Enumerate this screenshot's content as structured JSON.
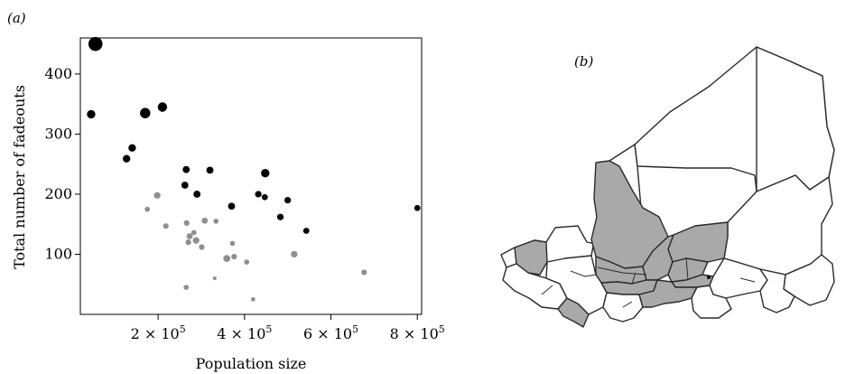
{
  "panel_a_label": "(a)",
  "panel_b_label": "(b)",
  "colors": {
    "point_black": "#000000",
    "point_grey": "#8f8f8f",
    "region_grey": "#a9a9a9",
    "region_white": "#ffffff"
  },
  "chart_data": {
    "type": "scatter",
    "title": "",
    "xlabel": "Population size",
    "ylabel": "Total number of fadeouts",
    "xlim": [
      20000,
      810000
    ],
    "ylim": [
      0,
      460
    ],
    "grid": false,
    "x_ticks": [
      {
        "value": 200000,
        "label_base": "2 × 10",
        "label_exp": "5"
      },
      {
        "value": 400000,
        "label_base": "4 × 10",
        "label_exp": "5"
      },
      {
        "value": 600000,
        "label_base": "6 × 10",
        "label_exp": "5"
      },
      {
        "value": 800000,
        "label_base": "8 × 10",
        "label_exp": "5"
      }
    ],
    "y_ticks": [
      100,
      200,
      300,
      400
    ],
    "series": [
      {
        "color": "#000000",
        "points": [
          {
            "x": 55000,
            "y": 450,
            "size": 3.0
          },
          {
            "x": 45000,
            "y": 333,
            "size": 1.8
          },
          {
            "x": 170000,
            "y": 335,
            "size": 2.2
          },
          {
            "x": 210000,
            "y": 345,
            "size": 2.0
          },
          {
            "x": 140000,
            "y": 277,
            "size": 1.6
          },
          {
            "x": 127000,
            "y": 259,
            "size": 1.6
          },
          {
            "x": 265000,
            "y": 241,
            "size": 1.5
          },
          {
            "x": 320000,
            "y": 240,
            "size": 1.5
          },
          {
            "x": 448000,
            "y": 235,
            "size": 1.8
          },
          {
            "x": 262000,
            "y": 215,
            "size": 1.5
          },
          {
            "x": 290000,
            "y": 200,
            "size": 1.5
          },
          {
            "x": 432000,
            "y": 200,
            "size": 1.4
          },
          {
            "x": 447000,
            "y": 195,
            "size": 1.3
          },
          {
            "x": 500000,
            "y": 190,
            "size": 1.4
          },
          {
            "x": 370000,
            "y": 180,
            "size": 1.5
          },
          {
            "x": 483000,
            "y": 162,
            "size": 1.4
          },
          {
            "x": 543000,
            "y": 139,
            "size": 1.3
          },
          {
            "x": 800000,
            "y": 177,
            "size": 1.3
          }
        ]
      },
      {
        "color": "#8f8f8f",
        "points": [
          {
            "x": 198000,
            "y": 198,
            "size": 1.4
          },
          {
            "x": 175000,
            "y": 175,
            "size": 1.1
          },
          {
            "x": 218000,
            "y": 147,
            "size": 1.2
          },
          {
            "x": 266000,
            "y": 152,
            "size": 1.2
          },
          {
            "x": 308000,
            "y": 156,
            "size": 1.3
          },
          {
            "x": 334000,
            "y": 155,
            "size": 1.1
          },
          {
            "x": 273000,
            "y": 130,
            "size": 1.3
          },
          {
            "x": 283000,
            "y": 136,
            "size": 1.1
          },
          {
            "x": 288000,
            "y": 123,
            "size": 1.4
          },
          {
            "x": 270000,
            "y": 120,
            "size": 1.2
          },
          {
            "x": 301000,
            "y": 112,
            "size": 1.2
          },
          {
            "x": 372000,
            "y": 118,
            "size": 1.1
          },
          {
            "x": 359000,
            "y": 93,
            "size": 1.5
          },
          {
            "x": 376000,
            "y": 96,
            "size": 1.2
          },
          {
            "x": 405000,
            "y": 87,
            "size": 1.1
          },
          {
            "x": 515000,
            "y": 100,
            "size": 1.4
          },
          {
            "x": 677000,
            "y": 70,
            "size": 1.2
          },
          {
            "x": 265000,
            "y": 45,
            "size": 1.1
          },
          {
            "x": 331000,
            "y": 60,
            "size": 0.8
          },
          {
            "x": 420000,
            "y": 25,
            "size": 0.9
          }
        ]
      }
    ]
  },
  "map": {
    "regions": [
      {
        "id": "algeria-north",
        "fill": "white"
      },
      {
        "id": "libya",
        "fill": "white"
      },
      {
        "id": "mali-north",
        "fill": "grey"
      },
      {
        "id": "niger-east",
        "fill": "white"
      },
      {
        "id": "niger-agadez",
        "fill": "grey"
      },
      {
        "id": "chad",
        "fill": "white"
      },
      {
        "id": "mauritania",
        "fill": "white"
      },
      {
        "id": "senegal-west",
        "fill": "grey"
      },
      {
        "id": "mali-south-1",
        "fill": "grey"
      },
      {
        "id": "mali-south-2",
        "fill": "grey"
      },
      {
        "id": "burkina",
        "fill": "grey"
      },
      {
        "id": "niger-south-1",
        "fill": "grey"
      },
      {
        "id": "niger-south-2",
        "fill": "grey"
      },
      {
        "id": "guinea",
        "fill": "white"
      },
      {
        "id": "ivory-coast",
        "fill": "white"
      },
      {
        "id": "ghana",
        "fill": "white"
      },
      {
        "id": "togo-benin",
        "fill": "grey"
      },
      {
        "id": "nigeria-north",
        "fill": "white"
      },
      {
        "id": "nigeria-south",
        "fill": "white"
      },
      {
        "id": "cameroon",
        "fill": "white"
      },
      {
        "id": "coast-west",
        "fill": "grey"
      }
    ]
  }
}
